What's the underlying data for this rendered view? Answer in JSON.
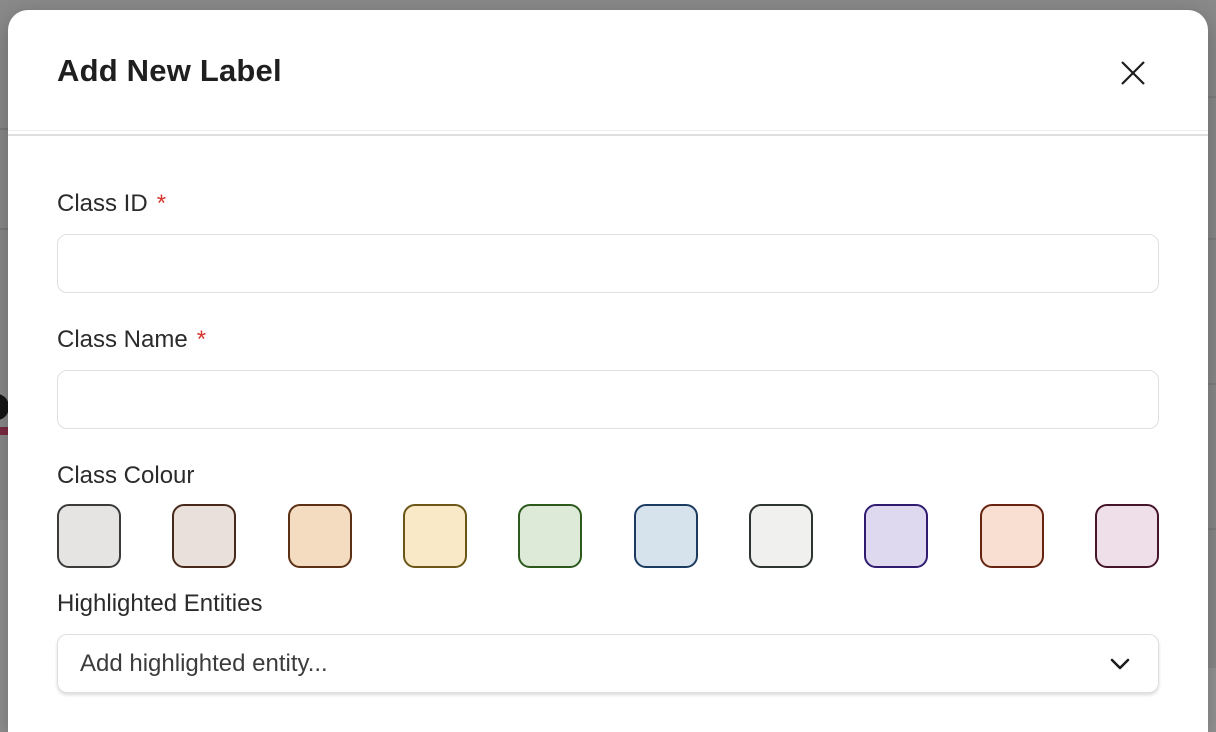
{
  "modal": {
    "title": "Add New Label"
  },
  "fields": {
    "class_id": {
      "label": "Class ID",
      "required_marker": "*",
      "value": ""
    },
    "class_name": {
      "label": "Class Name",
      "required_marker": "*",
      "value": ""
    },
    "class_colour": {
      "label": "Class Colour",
      "swatches": [
        {
          "name": "grey",
          "fill": "#e6e4e2",
          "border": "#3b3b3b"
        },
        {
          "name": "taupe",
          "fill": "#eae0db",
          "border": "#46291a"
        },
        {
          "name": "peach",
          "fill": "#f4dcc0",
          "border": "#5b3014"
        },
        {
          "name": "cream",
          "fill": "#f9e9c6",
          "border": "#6b5617"
        },
        {
          "name": "green",
          "fill": "#dcead7",
          "border": "#2c5a1c"
        },
        {
          "name": "blue",
          "fill": "#d6e3ed",
          "border": "#1c3b61"
        },
        {
          "name": "white",
          "fill": "#f0f0ee",
          "border": "#2e342f"
        },
        {
          "name": "lavender",
          "fill": "#ded9ee",
          "border": "#2f1c70"
        },
        {
          "name": "blush",
          "fill": "#f8dfd2",
          "border": "#662410"
        },
        {
          "name": "rose",
          "fill": "#efdfe9",
          "border": "#451529"
        }
      ]
    },
    "highlighted_entities": {
      "label": "Highlighted Entities",
      "placeholder": "Add highlighted entity..."
    }
  },
  "colors": {
    "backdrop": "#8a8a8a",
    "required_red": "#d9342e",
    "input_border": "#dcdfe3",
    "divider": "#dedede",
    "title_text": "#1f1f1f"
  }
}
